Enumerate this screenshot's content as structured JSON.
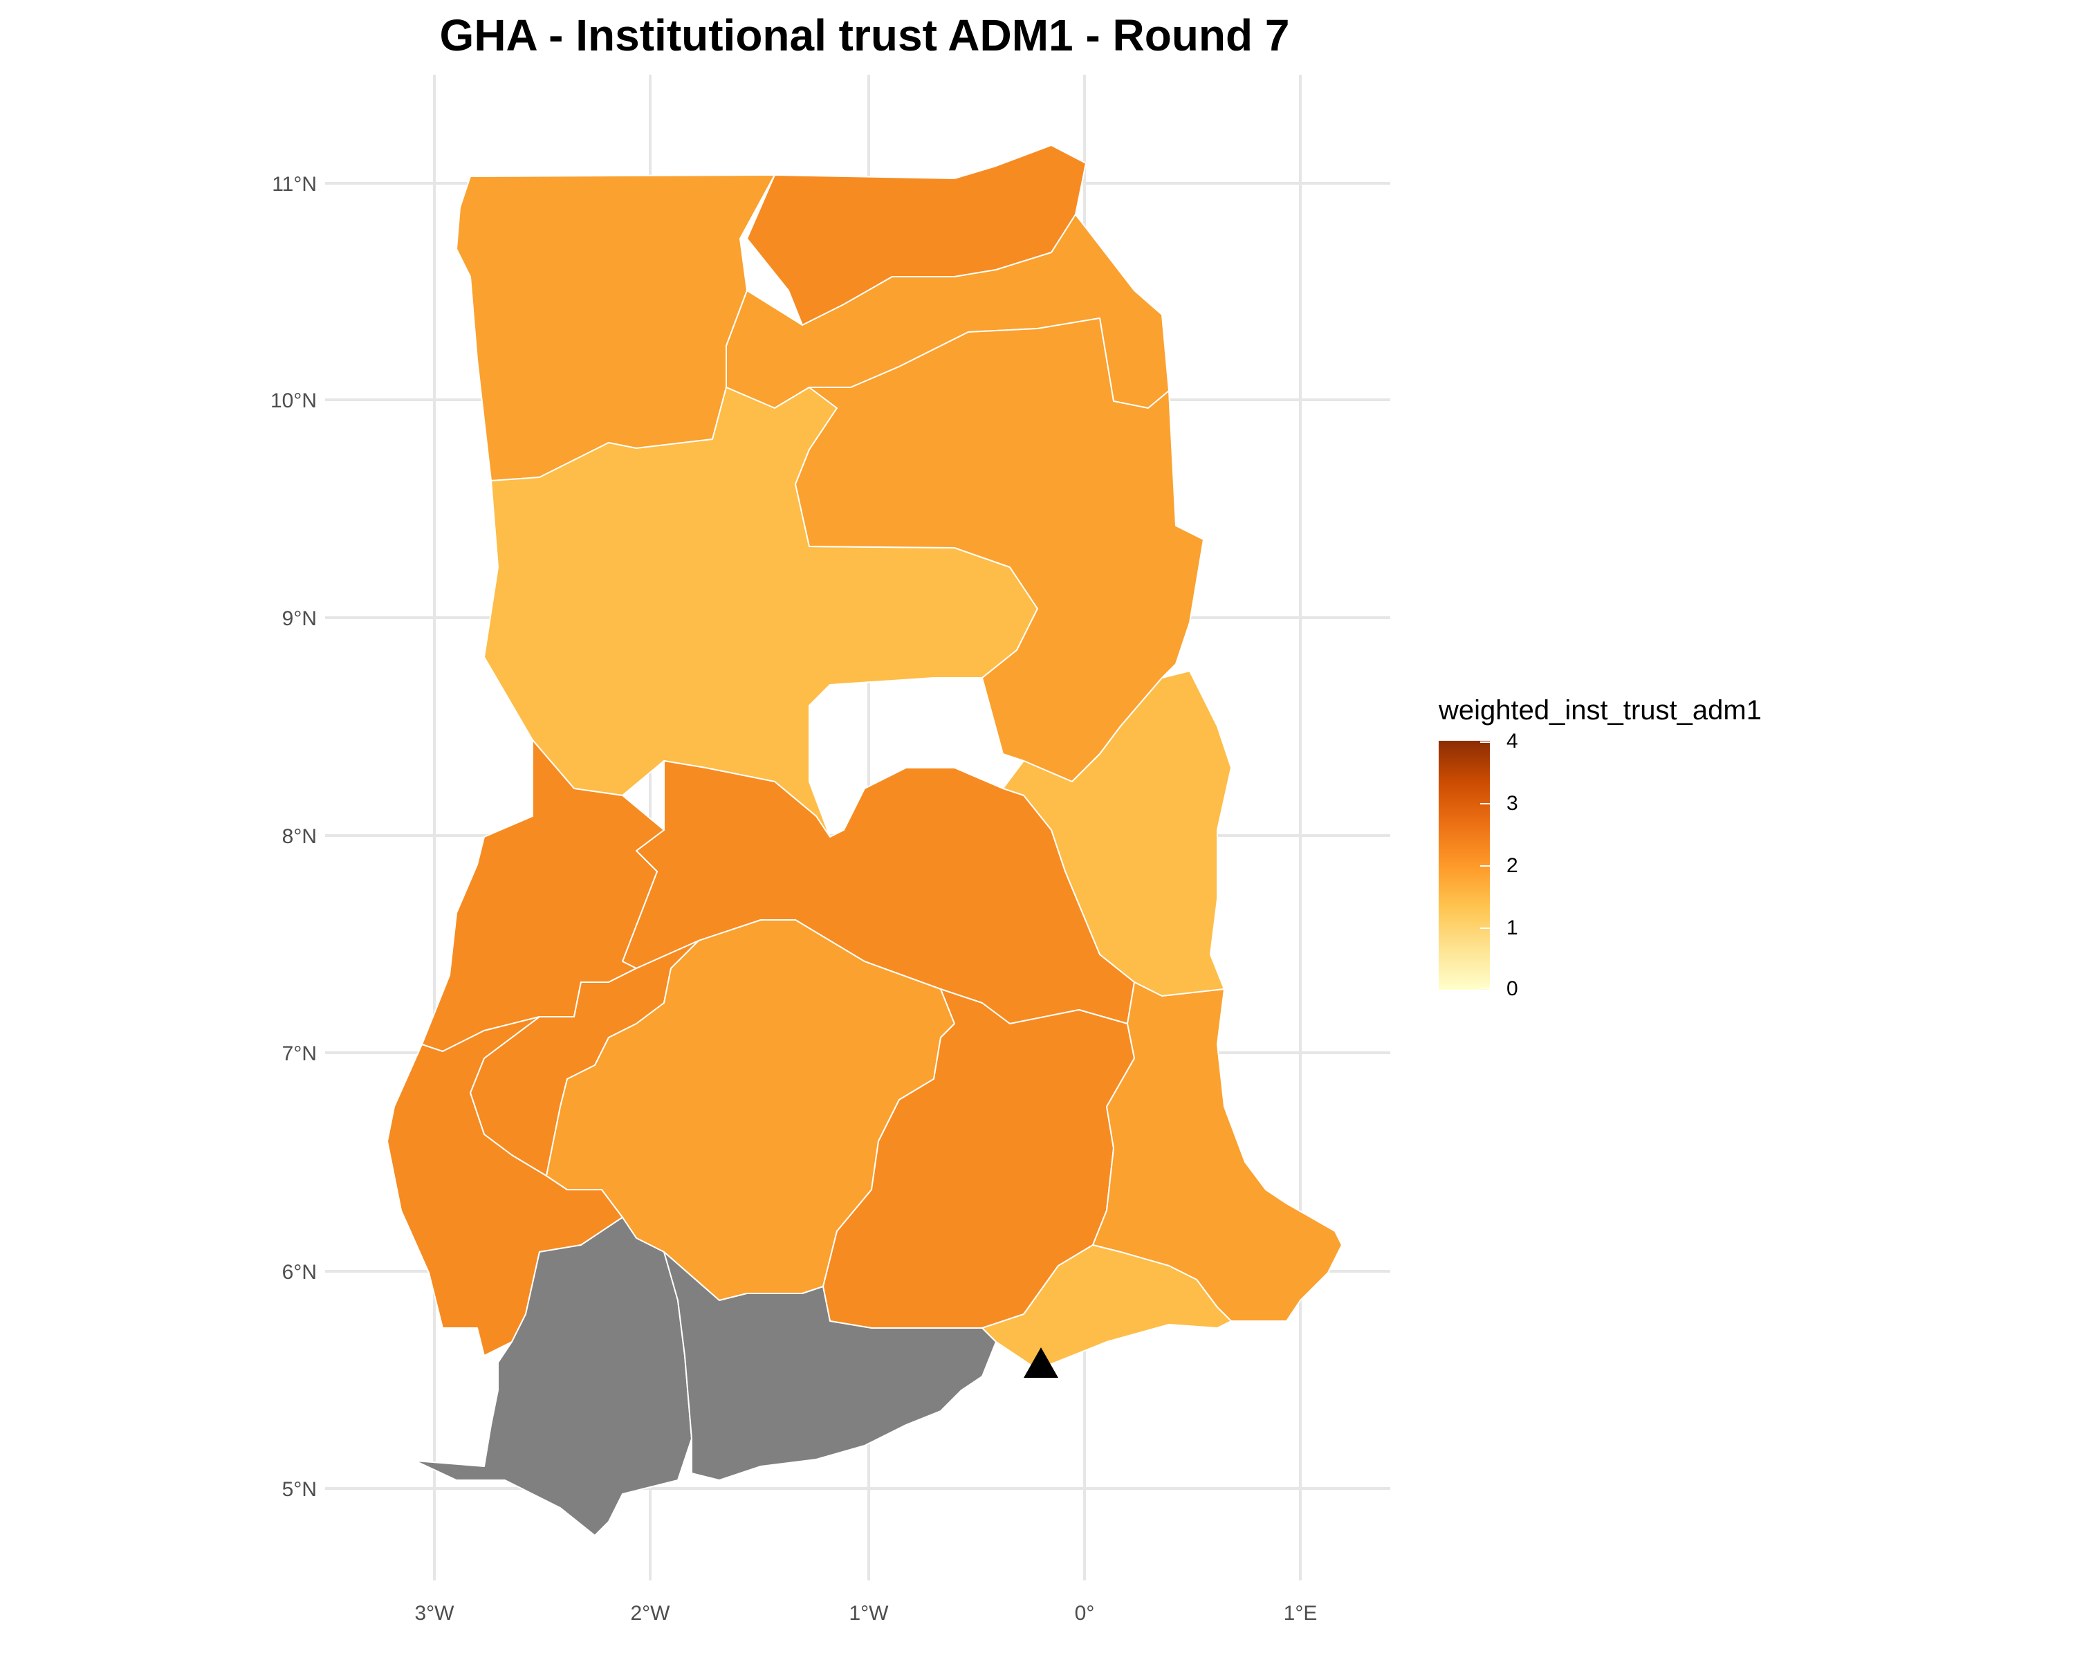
{
  "title": "GHA - Institutional trust ADM1 - Round 7",
  "axes": {
    "x_ticks": [
      "3°W",
      "2°W",
      "1°W",
      "0°",
      "1°E"
    ],
    "y_ticks": [
      "11°N",
      "10°N",
      "9°N",
      "8°N",
      "7°N",
      "6°N",
      "5°N"
    ]
  },
  "legend": {
    "title": "weighted_inst_trust_adm1",
    "ticks": [
      "4",
      "3",
      "2",
      "1",
      "0"
    ],
    "range": [
      0,
      4
    ],
    "palette": [
      "#ffffcc",
      "#fee391",
      "#fec44f",
      "#fe9929",
      "#ec7014",
      "#cc4c02",
      "#8c2d04"
    ]
  },
  "colors": {
    "light": "#fdbd48",
    "medium": "#faa12f",
    "dark": "#f68b22",
    "missing": "#808080",
    "marker": "#000000"
  },
  "chart_data": {
    "type": "choropleth",
    "variable": "weighted_inst_trust_adm1",
    "scale": {
      "min": 0,
      "max": 4
    },
    "x_range_deg": [
      -3.45,
      1.45
    ],
    "y_range_deg": [
      4.7,
      11.3
    ],
    "regions": [
      {
        "id": "upper-west",
        "value": 1.9
      },
      {
        "id": "upper-east",
        "value": 2.35
      },
      {
        "id": "north-east",
        "value": 2.1
      },
      {
        "id": "savannah",
        "value": 1.3
      },
      {
        "id": "northern",
        "value": 1.95
      },
      {
        "id": "oti",
        "value": 1.3
      },
      {
        "id": "bono",
        "value": 2.4
      },
      {
        "id": "bono-east",
        "value": 2.3
      },
      {
        "id": "ahafo",
        "value": 2.35
      },
      {
        "id": "western-north",
        "value": 2.45
      },
      {
        "id": "ashanti",
        "value": 2.0
      },
      {
        "id": "eastern",
        "value": 2.45
      },
      {
        "id": "volta",
        "value": 2.1
      },
      {
        "id": "greater-accra",
        "value": 1.25
      },
      {
        "id": "western",
        "value": null
      },
      {
        "id": "central",
        "value": null
      }
    ],
    "marker": {
      "shape": "triangle",
      "lon": -0.2,
      "lat": 5.56
    }
  }
}
